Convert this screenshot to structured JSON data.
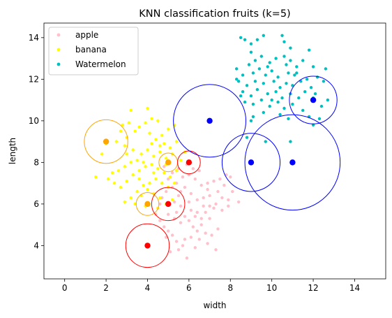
{
  "chart_data": {
    "type": "scatter",
    "title": "KNN classification fruits (k=5)",
    "xlabel": "width",
    "ylabel": "length",
    "xlim": [
      -1,
      15.5
    ],
    "ylim": [
      2.4,
      14.7
    ],
    "xticks": [
      0,
      2,
      4,
      6,
      8,
      10,
      12,
      14
    ],
    "yticks": [
      4,
      6,
      8,
      10,
      12,
      14
    ],
    "grid": false,
    "legend_placement": "top-left",
    "series": [
      {
        "name": "apple",
        "color": "#ffc0cb",
        "points": [
          [
            5.6,
            5.1
          ],
          [
            5.8,
            5.4
          ],
          [
            6.0,
            5.2
          ],
          [
            6.2,
            4.9
          ],
          [
            6.4,
            5.6
          ],
          [
            6.6,
            5.0
          ],
          [
            6.8,
            4.6
          ],
          [
            7.0,
            5.3
          ],
          [
            7.2,
            5.8
          ],
          [
            7.4,
            4.8
          ],
          [
            5.2,
            4.5
          ],
          [
            5.4,
            4.2
          ],
          [
            5.7,
            4.0
          ],
          [
            6.1,
            4.4
          ],
          [
            6.5,
            4.3
          ],
          [
            6.9,
            4.1
          ],
          [
            7.3,
            3.8
          ],
          [
            5.1,
            3.7
          ],
          [
            5.9,
            3.4
          ],
          [
            6.3,
            3.9
          ],
          [
            4.6,
            5.2
          ],
          [
            4.8,
            4.9
          ],
          [
            5.0,
            4.7
          ],
          [
            4.5,
            5.8
          ],
          [
            4.7,
            6.3
          ],
          [
            4.9,
            6.6
          ],
          [
            5.3,
            6.1
          ],
          [
            5.5,
            6.4
          ],
          [
            5.8,
            6.8
          ],
          [
            6.1,
            6.5
          ],
          [
            6.4,
            6.2
          ],
          [
            6.7,
            5.9
          ],
          [
            7.0,
            6.4
          ],
          [
            7.3,
            6.0
          ],
          [
            7.6,
            5.7
          ],
          [
            7.9,
            6.2
          ],
          [
            8.1,
            6.6
          ],
          [
            8.4,
            6.1
          ],
          [
            7.7,
            6.9
          ],
          [
            7.5,
            7.2
          ],
          [
            7.2,
            7.1
          ],
          [
            6.9,
            7.0
          ],
          [
            6.6,
            6.9
          ],
          [
            6.3,
            7.2
          ],
          [
            6.0,
            7.4
          ],
          [
            5.7,
            7.3
          ],
          [
            5.4,
            7.0
          ],
          [
            5.2,
            7.5
          ],
          [
            5.0,
            7.2
          ],
          [
            4.8,
            7.8
          ],
          [
            5.5,
            7.7
          ],
          [
            5.9,
            7.9
          ],
          [
            6.2,
            7.7
          ],
          [
            6.5,
            7.6
          ],
          [
            7.8,
            7.4
          ],
          [
            8.0,
            7.3
          ],
          [
            6.1,
            5.7
          ],
          [
            5.6,
            5.9
          ],
          [
            6.8,
            5.6
          ],
          [
            7.1,
            4.5
          ],
          [
            5.3,
            5.3
          ],
          [
            4.4,
            5.5
          ],
          [
            6.4,
            4.7
          ],
          [
            6.7,
            6.3
          ],
          [
            7.4,
            6.6
          ],
          [
            5.0,
            5.5
          ],
          [
            5.8,
            4.3
          ],
          [
            6.0,
            6.1
          ],
          [
            5.4,
            5.6
          ],
          [
            6.3,
            5.4
          ],
          [
            7.6,
            6.3
          ],
          [
            4.6,
            6.0
          ],
          [
            5.2,
            6.8
          ],
          [
            5.6,
            6.6
          ],
          [
            6.9,
            6.7
          ],
          [
            7.9,
            5.9
          ],
          [
            4.9,
            4.4
          ],
          [
            5.5,
            3.8
          ],
          [
            6.6,
            5.3
          ],
          [
            7.0,
            5.9
          ]
        ]
      },
      {
        "name": "banana",
        "color": "#ffff00",
        "points": [
          [
            3.2,
            10.5
          ],
          [
            2.8,
            9.8
          ],
          [
            3.4,
            9.5
          ],
          [
            3.0,
            9.2
          ],
          [
            2.5,
            9.0
          ],
          [
            2.9,
            8.8
          ],
          [
            3.3,
            8.6
          ],
          [
            3.6,
            9.7
          ],
          [
            3.9,
            9.9
          ],
          [
            4.2,
            10.1
          ],
          [
            4.5,
            10.0
          ],
          [
            4.1,
            9.4
          ],
          [
            4.4,
            9.1
          ],
          [
            4.7,
            9.3
          ],
          [
            5.0,
            9.6
          ],
          [
            5.3,
            9.8
          ],
          [
            4.8,
            8.9
          ],
          [
            5.1,
            8.7
          ],
          [
            5.4,
            9.0
          ],
          [
            5.2,
            8.4
          ],
          [
            4.9,
            8.2
          ],
          [
            4.6,
            8.5
          ],
          [
            4.3,
            8.3
          ],
          [
            4.0,
            8.6
          ],
          [
            3.7,
            8.4
          ],
          [
            3.5,
            8.1
          ],
          [
            3.2,
            8.0
          ],
          [
            2.9,
            7.8
          ],
          [
            2.6,
            7.6
          ],
          [
            2.3,
            7.5
          ],
          [
            2.1,
            7.2
          ],
          [
            2.4,
            7.0
          ],
          [
            2.7,
            6.8
          ],
          [
            3.0,
            7.1
          ],
          [
            3.3,
            7.4
          ],
          [
            3.6,
            7.6
          ],
          [
            3.9,
            7.8
          ],
          [
            4.2,
            7.9
          ],
          [
            4.5,
            7.7
          ],
          [
            4.8,
            7.5
          ],
          [
            5.1,
            7.3
          ],
          [
            5.4,
            7.6
          ],
          [
            5.6,
            8.1
          ],
          [
            5.8,
            8.5
          ],
          [
            4.4,
            7.2
          ],
          [
            4.1,
            7.0
          ],
          [
            3.8,
            6.9
          ],
          [
            3.5,
            6.6
          ],
          [
            3.2,
            6.3
          ],
          [
            2.9,
            6.1
          ],
          [
            3.4,
            6.0
          ],
          [
            3.7,
            6.4
          ],
          [
            4.0,
            6.7
          ],
          [
            4.3,
            6.5
          ],
          [
            4.6,
            6.3
          ],
          [
            4.9,
            6.0
          ],
          [
            5.2,
            6.2
          ],
          [
            3.9,
            5.9
          ],
          [
            4.5,
            5.8
          ],
          [
            5.0,
            6.8
          ],
          [
            1.5,
            7.3
          ],
          [
            1.8,
            8.4
          ],
          [
            2.0,
            8.9
          ],
          [
            3.1,
            9.9
          ],
          [
            4.0,
            10.6
          ],
          [
            4.6,
            8.8
          ],
          [
            3.8,
            8.0
          ],
          [
            4.2,
            8.9
          ],
          [
            2.7,
            9.5
          ],
          [
            4.7,
            7.0
          ],
          [
            5.3,
            7.0
          ],
          [
            3.6,
            7.2
          ],
          [
            4.9,
            7.9
          ],
          [
            3.0,
            8.4
          ],
          [
            4.3,
            7.5
          ]
        ]
      },
      {
        "name": "Watermelon",
        "color": "#00bfbf",
        "points": [
          [
            8.5,
            14.0
          ],
          [
            8.7,
            13.9
          ],
          [
            9.3,
            13.9
          ],
          [
            9.0,
            13.7
          ],
          [
            9.6,
            14.1
          ],
          [
            10.5,
            14.1
          ],
          [
            10.6,
            13.8
          ],
          [
            10.9,
            13.5
          ],
          [
            11.8,
            13.4
          ],
          [
            10.6,
            13.1
          ],
          [
            9.0,
            13.3
          ],
          [
            9.5,
            13.1
          ],
          [
            9.2,
            12.9
          ],
          [
            10.2,
            13.0
          ],
          [
            8.9,
            12.7
          ],
          [
            9.9,
            12.8
          ],
          [
            10.7,
            12.7
          ],
          [
            11.2,
            12.6
          ],
          [
            11.5,
            12.9
          ],
          [
            12.0,
            12.6
          ],
          [
            8.3,
            12.5
          ],
          [
            8.6,
            12.2
          ],
          [
            9.1,
            12.3
          ],
          [
            9.4,
            12.5
          ],
          [
            9.7,
            12.2
          ],
          [
            10.0,
            12.4
          ],
          [
            10.3,
            12.1
          ],
          [
            10.8,
            12.3
          ],
          [
            11.1,
            12.2
          ],
          [
            11.7,
            12.0
          ],
          [
            12.2,
            12.1
          ],
          [
            12.5,
            11.9
          ],
          [
            12.6,
            12.5
          ],
          [
            8.4,
            11.9
          ],
          [
            8.8,
            11.7
          ],
          [
            9.2,
            11.9
          ],
          [
            9.6,
            11.8
          ],
          [
            10.1,
            11.9
          ],
          [
            10.4,
            11.6
          ],
          [
            10.7,
            11.8
          ],
          [
            11.0,
            11.7
          ],
          [
            11.4,
            11.9
          ],
          [
            11.9,
            11.6
          ],
          [
            8.6,
            11.4
          ],
          [
            9.0,
            11.2
          ],
          [
            9.3,
            11.5
          ],
          [
            9.8,
            11.3
          ],
          [
            10.2,
            11.4
          ],
          [
            10.5,
            11.1
          ],
          [
            10.9,
            11.3
          ],
          [
            11.3,
            11.1
          ],
          [
            11.6,
            11.4
          ],
          [
            12.1,
            11.3
          ],
          [
            8.7,
            10.9
          ],
          [
            9.1,
            10.8
          ],
          [
            9.5,
            11.0
          ],
          [
            9.9,
            10.7
          ],
          [
            10.3,
            10.9
          ],
          [
            10.6,
            10.6
          ],
          [
            11.0,
            10.8
          ],
          [
            11.5,
            10.5
          ],
          [
            11.8,
            10.2
          ],
          [
            10.4,
            10.3
          ],
          [
            9.6,
            10.4
          ],
          [
            9.1,
            10.2
          ],
          [
            10.8,
            10.1
          ],
          [
            9.0,
            10.0
          ],
          [
            8.5,
            11.2
          ],
          [
            12.4,
            10.7
          ],
          [
            12.3,
            10.1
          ],
          [
            12.0,
            9.8
          ],
          [
            10.9,
            9.0
          ],
          [
            9.8,
            12.6
          ],
          [
            10.9,
            12.9
          ],
          [
            10.0,
            11.0
          ],
          [
            11.2,
            12.3
          ],
          [
            8.3,
            12.0
          ],
          [
            12.7,
            11.0
          ],
          [
            12.0,
            11.1
          ],
          [
            8.8,
            9.2
          ],
          [
            9.7,
            9.0
          ]
        ]
      }
    ],
    "highlighted_points": [
      {
        "x": 2,
        "y": 9,
        "color": "#ffa500",
        "radius": 1.05
      },
      {
        "x": 5,
        "y": 8,
        "color": "#ffa500",
        "radius": 0.45
      },
      {
        "x": 4,
        "y": 6,
        "color": "#ffa500",
        "radius": 0.55
      },
      {
        "x": 6,
        "y": 8,
        "color": "#ff0000",
        "radius": 0.55
      },
      {
        "x": 5,
        "y": 6,
        "color": "#ff0000",
        "radius": 0.8
      },
      {
        "x": 4,
        "y": 4,
        "color": "#ff0000",
        "radius": 1.05
      },
      {
        "x": 7,
        "y": 10,
        "color": "#0000ff",
        "radius": 1.75
      },
      {
        "x": 9,
        "y": 8,
        "color": "#0000ff",
        "radius": 1.4
      },
      {
        "x": 11,
        "y": 8,
        "color": "#0000ff",
        "radius": 2.3
      },
      {
        "x": 12,
        "y": 11,
        "color": "#0000ff",
        "radius": 1.15
      }
    ]
  }
}
